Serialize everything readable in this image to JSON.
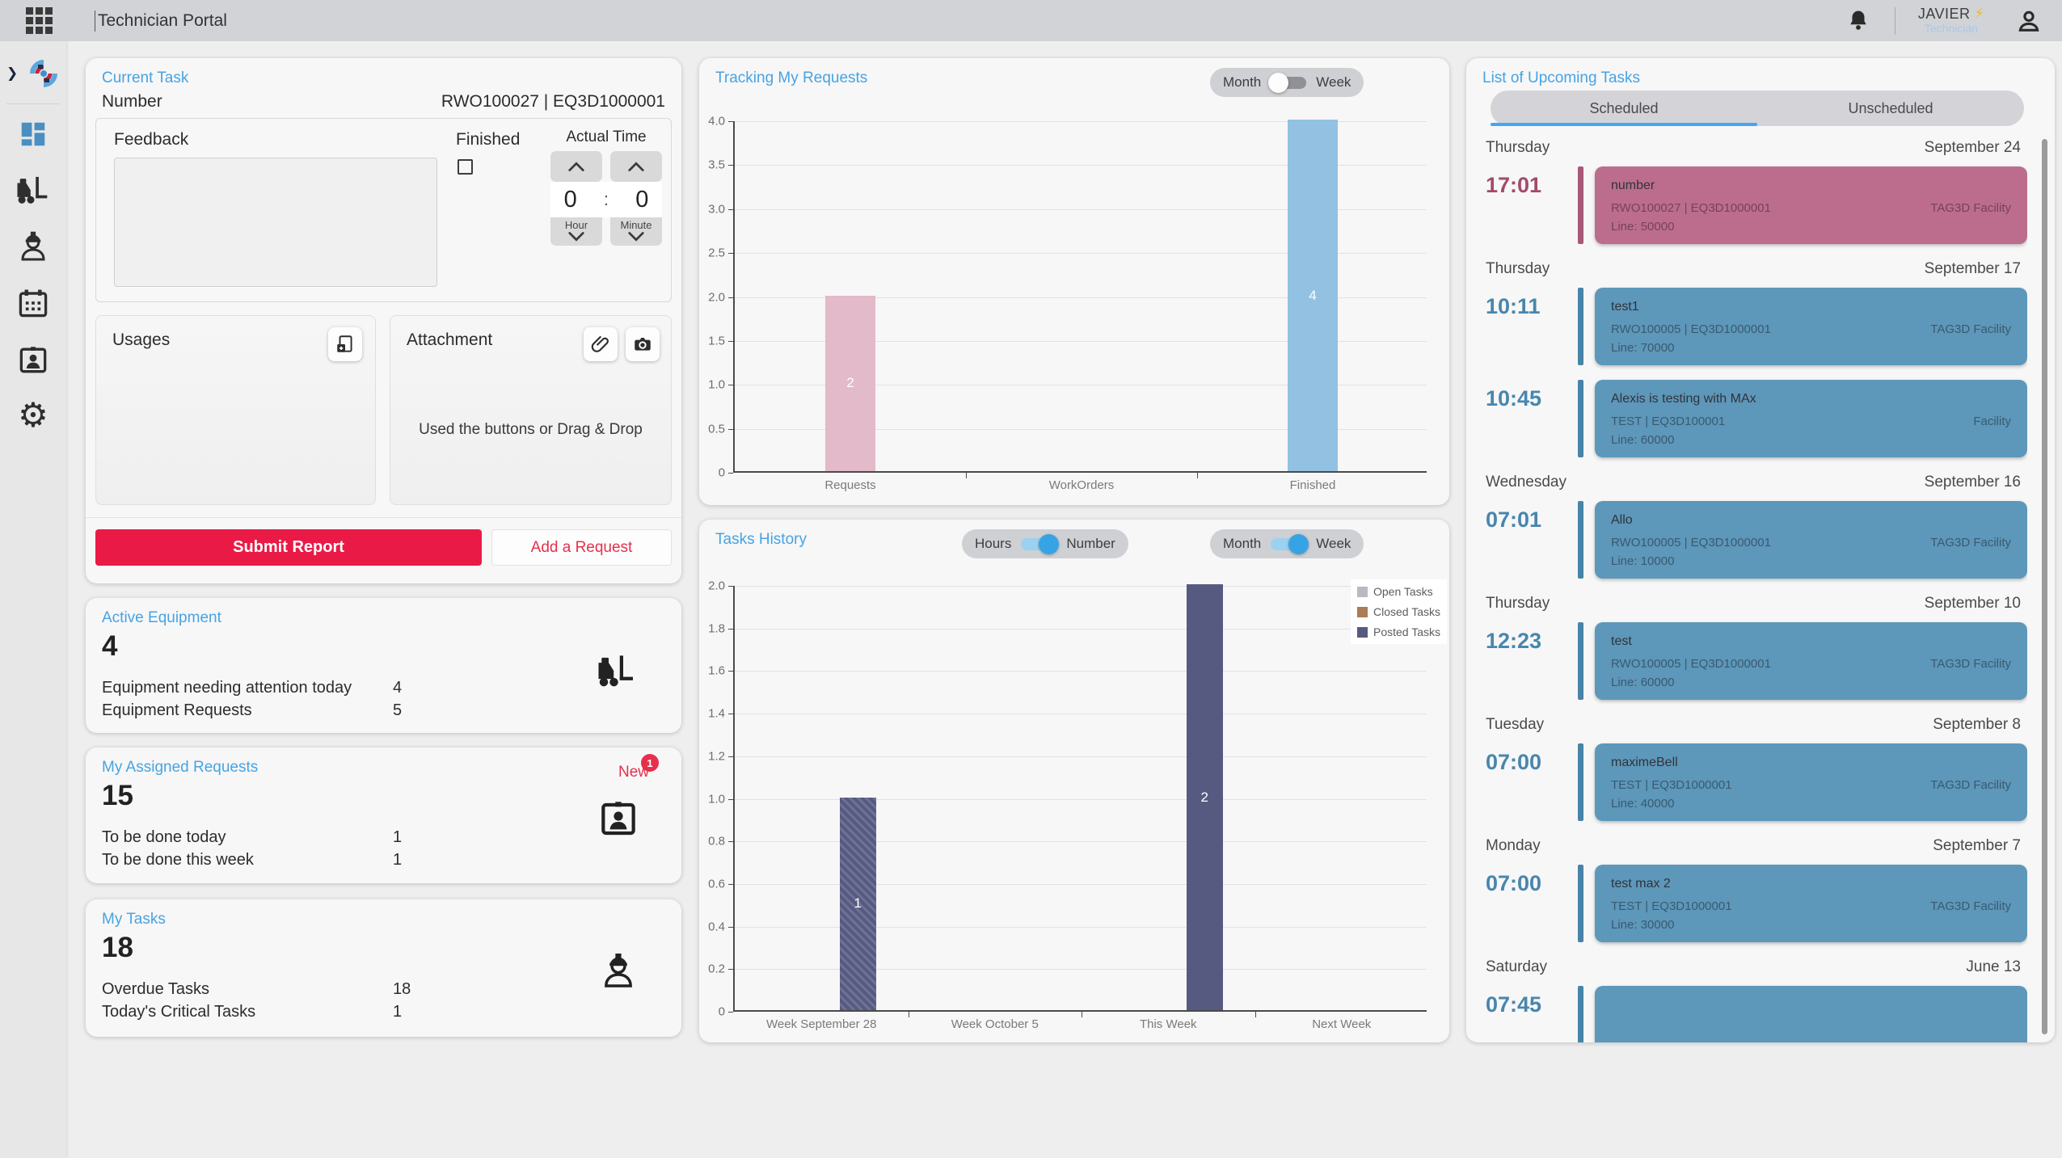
{
  "topbar": {
    "title": "Technician Portal",
    "user_name": "JAVIER",
    "user_role": "Technician",
    "bolt_icon": "⚡"
  },
  "sidebar": {
    "icons": [
      "expand-chevron",
      "brand-logo",
      "dashboard",
      "forklift-equipment",
      "technician",
      "calendar",
      "badge-requests",
      "settings-gear"
    ]
  },
  "current_task": {
    "title": "Current Task",
    "number_label": "Number",
    "number_value": "RWO100027 | EQ3D1000001",
    "feedback_label": "Feedback",
    "finished_label": "Finished",
    "actual_time_label": "Actual Time",
    "hour_value": "0",
    "minute_value": "0",
    "time_separator": ":",
    "hour_label": "Hour",
    "minute_label": "Minute",
    "usages_label": "Usages",
    "attachment_label": "Attachment",
    "attachment_hint": "Used the buttons or Drag & Drop",
    "submit_label": "Submit Report",
    "add_request_label": "Add a Request"
  },
  "stats": {
    "active_equipment": {
      "title": "Active Equipment",
      "total": "4",
      "rows": [
        {
          "label": "Equipment needing attention today",
          "value": "4"
        },
        {
          "label": "Equipment Requests",
          "value": "5"
        }
      ]
    },
    "my_assigned_requests": {
      "title": "My Assigned Requests",
      "total": "15",
      "new_label": "New",
      "new_count": "1",
      "rows": [
        {
          "label": "To be done today",
          "value": "1"
        },
        {
          "label": "To be done this week",
          "value": "1"
        }
      ]
    },
    "my_tasks": {
      "title": "My Tasks",
      "total": "18",
      "rows": [
        {
          "label": "Overdue Tasks",
          "value": "18"
        },
        {
          "label": "Today's Critical Tasks",
          "value": "1"
        }
      ]
    }
  },
  "chart_data": [
    {
      "type": "bar",
      "title": "Tracking My Requests",
      "categories": [
        "Requests",
        "WorkOrders",
        "Finished"
      ],
      "values": [
        2,
        0,
        4
      ],
      "bar_colors": [
        "#e2bac9",
        "#e2bac9",
        "#92c1e2"
      ],
      "ylim": [
        0,
        4
      ],
      "ytick_step": 0.5,
      "grid": true,
      "legend_position": "none",
      "toggle": {
        "left": "Month",
        "right": "Week",
        "state": "off"
      }
    },
    {
      "type": "bar",
      "title": "Tasks History",
      "categories": [
        "Week September 28",
        "Week October 5",
        "This Week",
        "Next Week"
      ],
      "series": [
        {
          "name": "Open Tasks",
          "color": "#b9b9c1",
          "values": [
            0,
            0,
            0,
            0
          ]
        },
        {
          "name": "Closed Tasks",
          "color": "#aa7c57",
          "values": [
            0,
            0,
            0,
            0
          ]
        },
        {
          "name": "Posted Tasks",
          "color": "#575a80",
          "values": [
            1,
            0,
            2,
            0
          ]
        }
      ],
      "posted_hatched": [
        true,
        false,
        false,
        false
      ],
      "ylim": [
        0,
        2
      ],
      "ytick_step": 0.2,
      "grid": true,
      "legend_position": "top-right",
      "toggles": [
        {
          "left": "Hours",
          "right": "Number",
          "state": "on"
        },
        {
          "left": "Month",
          "right": "Week",
          "state": "on"
        }
      ]
    }
  ],
  "upcoming": {
    "title": "List of Upcoming Tasks",
    "tabs": [
      {
        "label": "Scheduled",
        "active": true
      },
      {
        "label": "Unscheduled",
        "active": false
      }
    ],
    "sections": [
      {
        "day": "Thursday",
        "date": "September 24",
        "items": [
          {
            "time": "17:01",
            "color": "pink",
            "title": "number",
            "ref": "RWO100027 | EQ3D1000001",
            "facility": "TAG3D Facility",
            "line": "Line: 50000"
          }
        ]
      },
      {
        "day": "Thursday",
        "date": "September 17",
        "items": [
          {
            "time": "10:11",
            "color": "blue",
            "title": "test1",
            "ref": "RWO100005 | EQ3D1000001",
            "facility": "TAG3D Facility",
            "line": "Line: 70000"
          },
          {
            "time": "10:45",
            "color": "blue",
            "title": "Alexis is testing with MAx",
            "ref": "TEST | EQ3D100001",
            "facility": "Facility",
            "line": "Line: 60000"
          }
        ]
      },
      {
        "day": "Wednesday",
        "date": "September 16",
        "items": [
          {
            "time": "07:01",
            "color": "blue",
            "title": "Allo",
            "ref": "RWO100005 | EQ3D1000001",
            "facility": "TAG3D Facility",
            "line": "Line: 10000"
          }
        ]
      },
      {
        "day": "Thursday",
        "date": "September 10",
        "items": [
          {
            "time": "12:23",
            "color": "blue",
            "title": "test",
            "ref": "RWO100005 | EQ3D1000001",
            "facility": "TAG3D Facility",
            "line": "Line: 60000"
          }
        ]
      },
      {
        "day": "Tuesday",
        "date": "September 8",
        "items": [
          {
            "time": "07:00",
            "color": "blue",
            "title": "maximeBell",
            "ref": "TEST | EQ3D1000001",
            "facility": "TAG3D Facility",
            "line": "Line: 40000"
          }
        ]
      },
      {
        "day": "Monday",
        "date": "September 7",
        "items": [
          {
            "time": "07:00",
            "color": "blue",
            "title": "test max 2",
            "ref": "TEST | EQ3D1000001",
            "facility": "TAG3D Facility",
            "line": "Line: 30000"
          }
        ]
      },
      {
        "day": "Saturday",
        "date": "June 13",
        "items": [
          {
            "time": "07:45",
            "color": "blue",
            "title": "",
            "ref": "",
            "facility": "",
            "line": ""
          }
        ]
      }
    ]
  },
  "colors": {
    "accent_blue": "#47a3e2",
    "submit_red": "#ea1a47",
    "task_card_blue": "#5d97ba",
    "task_card_pink": "#bc6d8e",
    "bar_pink": "#e2bac9",
    "bar_blue": "#92c1e2",
    "bar_posted": "#575a80"
  }
}
